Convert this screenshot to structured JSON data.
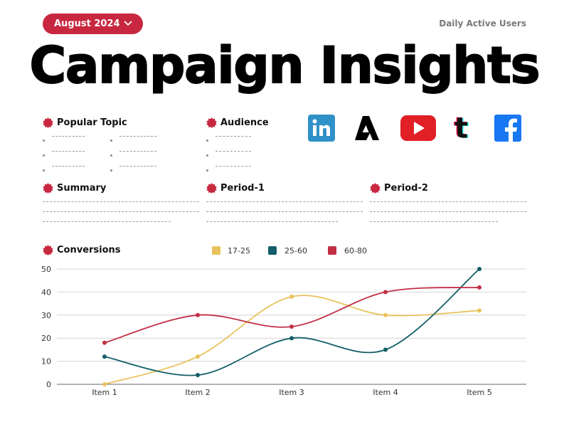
{
  "header": {
    "month_label": "August 2024",
    "metric_label": "Daily Active Users",
    "title": "Campaign Insights"
  },
  "sections": {
    "popular_topic": "Popular Topic",
    "audience": "Audience",
    "summary": "Summary",
    "period_1": "Period-1",
    "period_2": "Period-2",
    "conversions": "Conversions"
  },
  "social_icons": [
    "linkedin-icon",
    "adobe-express-icon",
    "youtube-icon",
    "tumblr-icon",
    "facebook-icon"
  ],
  "colors": {
    "accent": "#c8283f",
    "series_17_25": "#e8c25c",
    "series_25_60": "#135e68",
    "series_60_80": "#c22f45"
  },
  "chart_data": {
    "type": "line",
    "categories": [
      "Item 1",
      "Item 2",
      "Item 3",
      "Item 4",
      "Item 5"
    ],
    "series": [
      {
        "name": "17-25",
        "values": [
          0,
          12,
          38,
          30,
          32
        ]
      },
      {
        "name": "25-60",
        "values": [
          12,
          4,
          20,
          15,
          50
        ]
      },
      {
        "name": "60-80",
        "values": [
          18,
          30,
          25,
          40,
          42
        ]
      }
    ],
    "yticks": [
      "0",
      "10",
      "20",
      "30",
      "40",
      "50"
    ],
    "ylim": [
      0,
      50
    ],
    "grid": true,
    "legend": "top"
  }
}
